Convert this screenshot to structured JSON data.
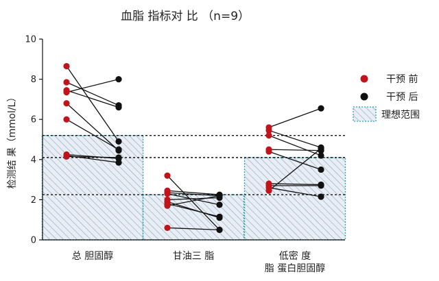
{
  "chart_data": {
    "type": "scatter",
    "title": "血脂 指标对 比 （n=9）",
    "ylabel": "检测结 果（mmol/L）",
    "xlabel": "",
    "ylim": [
      0,
      10
    ],
    "yticks": [
      "0",
      "2",
      "4",
      "6",
      "8",
      "10"
    ],
    "categories": [
      {
        "lines": [
          "总 胆固醇"
        ]
      },
      {
        "lines": [
          "甘油三 脂"
        ]
      },
      {
        "lines": [
          "低密 度",
          "脂 蛋白胆固醇"
        ]
      }
    ],
    "legend": {
      "placement": "right",
      "before": "干预 前",
      "after": "干预 后",
      "ideal": "理想范围"
    },
    "colors": {
      "before": "#c0141c",
      "after": "#111111",
      "ideal_border": "#2aa3b0",
      "ideal_hatch": "#8aa4bf",
      "ideal_fill": "#e9eef4",
      "guide": "#111111"
    },
    "ideal_ranges": [
      {
        "category": 0,
        "low": 0,
        "high": 5.2
      },
      {
        "category": 1,
        "low": 0,
        "high": 2.25
      },
      {
        "category": 2,
        "low": 0,
        "high": 4.1
      }
    ],
    "guide_lines": [
      5.2,
      4.1,
      2.25
    ],
    "groups": [
      {
        "before": [
          8.65,
          7.85,
          7.45,
          7.35,
          6.8,
          6.0,
          4.25,
          4.2,
          4.15
        ],
        "after": [
          4.9,
          6.7,
          6.6,
          8.0,
          4.45,
          4.5,
          4.05,
          3.85,
          4.1
        ]
      },
      {
        "before": [
          3.2,
          2.45,
          2.3,
          2.35,
          2.0,
          1.9,
          1.8,
          1.7,
          0.6
        ],
        "after": [
          0.5,
          2.25,
          1.75,
          2.2,
          2.1,
          1.1,
          1.15,
          2.2,
          0.5
        ]
      },
      {
        "before": [
          5.6,
          5.45,
          5.2,
          4.5,
          4.4,
          2.8,
          2.7,
          2.6,
          2.45
        ],
        "after": [
          6.55,
          4.6,
          4.2,
          4.45,
          3.5,
          2.75,
          2.7,
          2.15,
          4.55
        ]
      }
    ]
  }
}
